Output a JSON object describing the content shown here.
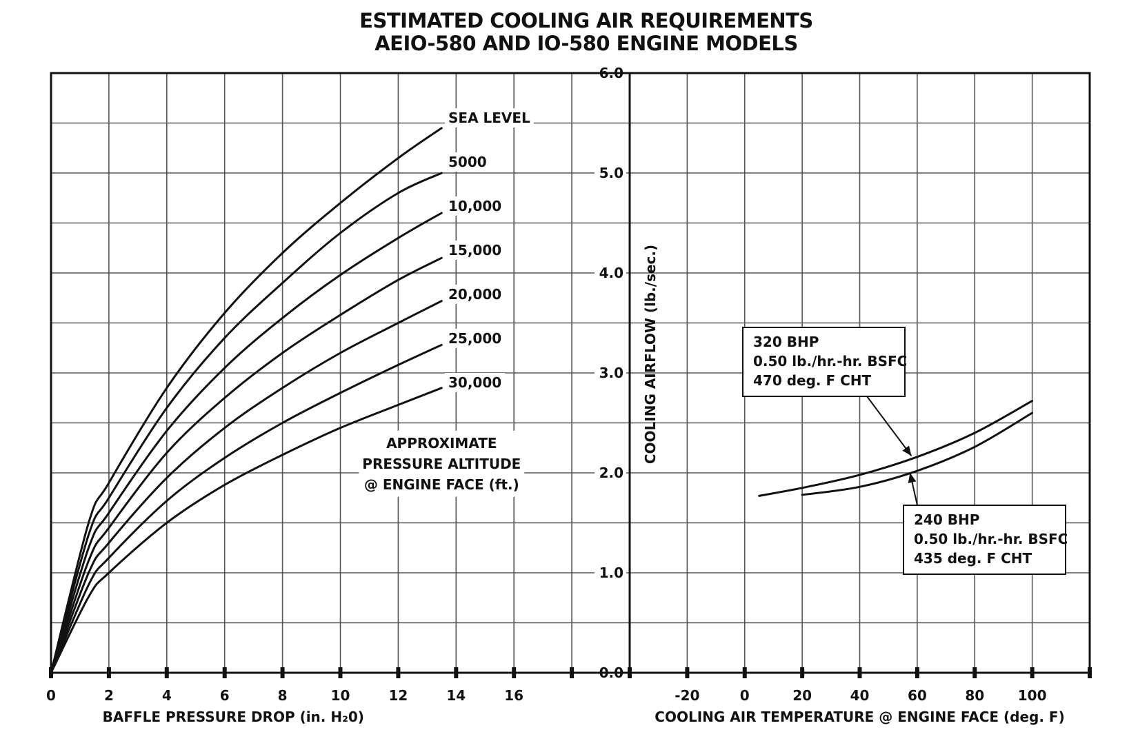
{
  "title_line1": "ESTIMATED COOLING AIR REQUIREMENTS",
  "title_line2": "AEIO-580 AND IO-580 ENGINE MODELS",
  "chart_data": [
    {
      "type": "line",
      "xlabel": "BAFFLE PRESSURE DROP (in. H₂0)",
      "ylabel": "COOLING AIRFLOW (lb./sec.)",
      "xlim": [
        0,
        20
      ],
      "ylim": [
        0,
        6
      ],
      "x_ticks": [
        "0",
        "2",
        "4",
        "6",
        "8",
        "10",
        "12",
        "14",
        "16"
      ],
      "y_ticks": [
        "0.0",
        "1.0",
        "2.0",
        "3.0",
        "4.0",
        "5.0",
        "6.0"
      ],
      "grid": true,
      "annotation": [
        "APPROXIMATE",
        "PRESSURE ALTITUDE",
        "@ ENGINE FACE (ft.)"
      ],
      "series": [
        {
          "name": "SEA LEVEL",
          "x": [
            0,
            1.3,
            2,
            4,
            6,
            8,
            10,
            12,
            13.5
          ],
          "y": [
            0,
            1.5,
            1.9,
            2.85,
            3.6,
            4.2,
            4.7,
            5.15,
            5.45
          ]
        },
        {
          "name": "5000",
          "x": [
            0,
            1.3,
            2,
            4,
            6,
            8,
            10,
            12,
            13.5
          ],
          "y": [
            0,
            1.38,
            1.75,
            2.65,
            3.35,
            3.9,
            4.4,
            4.8,
            5.0
          ]
        },
        {
          "name": "10,000",
          "x": [
            0,
            1.3,
            2,
            4,
            6,
            8,
            10,
            12,
            13.5
          ],
          "y": [
            0,
            1.25,
            1.6,
            2.42,
            3.05,
            3.55,
            3.98,
            4.35,
            4.6
          ]
        },
        {
          "name": "15,000",
          "x": [
            0,
            1.3,
            2,
            4,
            6,
            8,
            10,
            12,
            13.5
          ],
          "y": [
            0,
            1.12,
            1.45,
            2.2,
            2.75,
            3.2,
            3.58,
            3.93,
            4.15
          ]
        },
        {
          "name": "20,000",
          "x": [
            0,
            1.3,
            2,
            4,
            6,
            8,
            10,
            12,
            13.5
          ],
          "y": [
            0,
            1.0,
            1.3,
            1.95,
            2.45,
            2.85,
            3.2,
            3.5,
            3.72
          ]
        },
        {
          "name": "25,000",
          "x": [
            0,
            1.3,
            2,
            4,
            6,
            8,
            10,
            12,
            13.5
          ],
          "y": [
            0,
            0.88,
            1.15,
            1.72,
            2.15,
            2.5,
            2.8,
            3.08,
            3.28
          ]
        },
        {
          "name": "30,000",
          "x": [
            0,
            1.3,
            2,
            4,
            6,
            8,
            10,
            12,
            13.5
          ],
          "y": [
            0,
            0.76,
            1.0,
            1.5,
            1.88,
            2.18,
            2.45,
            2.68,
            2.85
          ]
        }
      ]
    },
    {
      "type": "line",
      "xlabel": "COOLING AIR TEMPERATURE @ ENGINE FACE (deg. F)",
      "ylabel": "COOLING AIRFLOW (lb./sec.)",
      "xlim": [
        -40,
        120
      ],
      "ylim": [
        0,
        6
      ],
      "x_ticks": [
        "-20",
        "0",
        "20",
        "40",
        "60",
        "80",
        "100"
      ],
      "grid": true,
      "series": [
        {
          "name": "320 BHP",
          "label": [
            "320 BHP",
            "0.50 lb./hr.-hr. BSFC",
            "470 deg. F CHT"
          ],
          "x": [
            5,
            20,
            40,
            60,
            80,
            100
          ],
          "y": [
            1.77,
            1.85,
            1.98,
            2.16,
            2.4,
            2.72
          ]
        },
        {
          "name": "240 BHP",
          "label": [
            "240 BHP",
            "0.50 lb./hr.-hr. BSFC",
            "435 deg. F CHT"
          ],
          "x": [
            20,
            40,
            60,
            80,
            100
          ],
          "y": [
            1.78,
            1.86,
            2.02,
            2.26,
            2.6
          ]
        }
      ]
    }
  ],
  "colors": {
    "ink": "#111111",
    "grid": "#555555",
    "background": "#ffffff"
  }
}
